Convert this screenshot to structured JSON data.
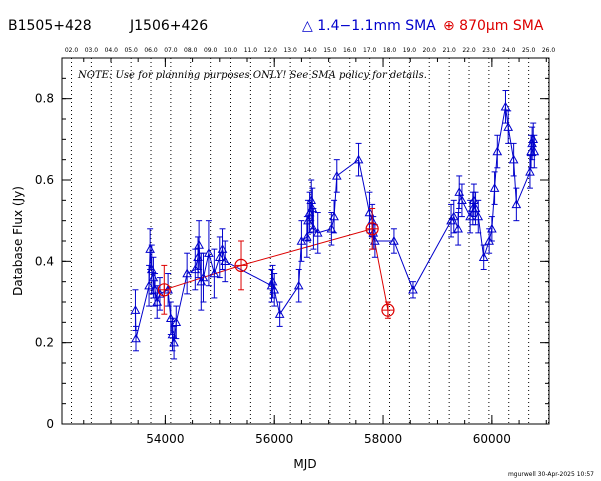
{
  "header": {
    "source_name": "B1505+428",
    "alt_name": "J1506+426",
    "legend_blue": "△ 1.4−1.1mm SMA",
    "legend_red": "⊕ 870μm SMA"
  },
  "note": "NOTE: Use for planning purposes ONLY!  See SMA policy for details.",
  "footer": "mgurwell 30-Apr-2025 10:57",
  "colors": {
    "blue": "#0000cc",
    "red": "#dd0000",
    "black": "#000000"
  },
  "chart_data": {
    "type": "scatter",
    "xlabel": "MJD",
    "ylabel": "Database Flux (Jy)",
    "xlim": [
      52100,
      61050
    ],
    "ylim": [
      0,
      0.9
    ],
    "x_ticks": [
      54000,
      56000,
      58000,
      60000
    ],
    "y_ticks": [
      0,
      0.2,
      0.4,
      0.6,
      0.8
    ],
    "x_minor_step": 500,
    "y_minor_step": 0.05,
    "top_axis_labels": [
      "02.0",
      "03.0",
      "04.0",
      "05.0",
      "06.0",
      "07.0",
      "08.0",
      "09.0",
      "10.0",
      "11.0",
      "12.0",
      "13.0",
      "14.0",
      "15.0",
      "16.0",
      "17.0",
      "18.0",
      "19.0",
      "20.0",
      "21.0",
      "22.0",
      "23.0",
      "24.0",
      "25.0",
      "26.0"
    ],
    "year_lines_mjd": [
      52275,
      52640,
      53005,
      53371,
      53736,
      54101,
      54466,
      54832,
      55197,
      55562,
      55927,
      56293,
      56658,
      57023,
      57388,
      57754,
      58119,
      58484,
      58849,
      59215,
      59580,
      59945,
      60310,
      60676,
      61041
    ],
    "series": [
      {
        "name": "1.4−1.1mm SMA",
        "marker": "triangle",
        "color": "#0000cc",
        "points": [
          [
            53450,
            0.28,
            0.05
          ],
          [
            53460,
            0.21,
            0.03
          ],
          [
            53700,
            0.34,
            0.05
          ],
          [
            53720,
            0.43,
            0.05
          ],
          [
            53750,
            0.38,
            0.06
          ],
          [
            53780,
            0.36,
            0.05
          ],
          [
            53810,
            0.33,
            0.04
          ],
          [
            53850,
            0.3,
            0.04
          ],
          [
            53900,
            0.32,
            0.04
          ],
          [
            54050,
            0.33,
            0.04
          ],
          [
            54100,
            0.26,
            0.04
          ],
          [
            54130,
            0.22,
            0.04
          ],
          [
            54160,
            0.2,
            0.04
          ],
          [
            54200,
            0.25,
            0.04
          ],
          [
            54400,
            0.37,
            0.05
          ],
          [
            54550,
            0.38,
            0.05
          ],
          [
            54600,
            0.41,
            0.05
          ],
          [
            54620,
            0.44,
            0.06
          ],
          [
            54660,
            0.35,
            0.07
          ],
          [
            54700,
            0.36,
            0.06
          ],
          [
            54800,
            0.42,
            0.08
          ],
          [
            54900,
            0.37,
            0.06
          ],
          [
            55000,
            0.41,
            0.05
          ],
          [
            55050,
            0.43,
            0.05
          ],
          [
            55100,
            0.4,
            0.05
          ],
          [
            55950,
            0.34,
            0.04
          ],
          [
            55970,
            0.35,
            0.04
          ],
          [
            56000,
            0.33,
            0.04
          ],
          [
            56100,
            0.27,
            0.03
          ],
          [
            56450,
            0.34,
            0.04
          ],
          [
            56500,
            0.45,
            0.05
          ],
          [
            56600,
            0.46,
            0.05
          ],
          [
            56620,
            0.5,
            0.05
          ],
          [
            56650,
            0.52,
            0.05
          ],
          [
            56680,
            0.55,
            0.05
          ],
          [
            56700,
            0.53,
            0.05
          ],
          [
            56720,
            0.48,
            0.05
          ],
          [
            56800,
            0.47,
            0.05
          ],
          [
            57050,
            0.48,
            0.04
          ],
          [
            57100,
            0.51,
            0.04
          ],
          [
            57150,
            0.61,
            0.04
          ],
          [
            57550,
            0.65,
            0.04
          ],
          [
            57750,
            0.52,
            0.05
          ],
          [
            57800,
            0.5,
            0.04
          ],
          [
            57820,
            0.47,
            0.04
          ],
          [
            57850,
            0.45,
            0.04
          ],
          [
            58200,
            0.45,
            0.03
          ],
          [
            58550,
            0.33,
            0.02
          ],
          [
            59250,
            0.5,
            0.04
          ],
          [
            59300,
            0.51,
            0.04
          ],
          [
            59380,
            0.48,
            0.04
          ],
          [
            59400,
            0.57,
            0.04
          ],
          [
            59450,
            0.55,
            0.04
          ],
          [
            59600,
            0.51,
            0.04
          ],
          [
            59650,
            0.53,
            0.04
          ],
          [
            59670,
            0.55,
            0.04
          ],
          [
            59700,
            0.53,
            0.04
          ],
          [
            59750,
            0.51,
            0.04
          ],
          [
            59850,
            0.41,
            0.03
          ],
          [
            59950,
            0.45,
            0.03
          ],
          [
            60000,
            0.48,
            0.03
          ],
          [
            60050,
            0.58,
            0.04
          ],
          [
            60100,
            0.67,
            0.04
          ],
          [
            60250,
            0.78,
            0.04
          ],
          [
            60300,
            0.73,
            0.04
          ],
          [
            60400,
            0.65,
            0.04
          ],
          [
            60450,
            0.54,
            0.04
          ],
          [
            60700,
            0.62,
            0.04
          ],
          [
            60720,
            0.67,
            0.04
          ],
          [
            60740,
            0.69,
            0.04
          ],
          [
            60760,
            0.7,
            0.04
          ],
          [
            60780,
            0.67,
            0.04
          ]
        ]
      },
      {
        "name": "870μm SMA",
        "marker": "circle-plus",
        "color": "#dd0000",
        "points": [
          [
            53980,
            0.33,
            0.06
          ],
          [
            55390,
            0.39,
            0.06
          ],
          [
            57800,
            0.48,
            0.05
          ],
          [
            58090,
            0.28,
            0.02
          ]
        ]
      }
    ]
  }
}
